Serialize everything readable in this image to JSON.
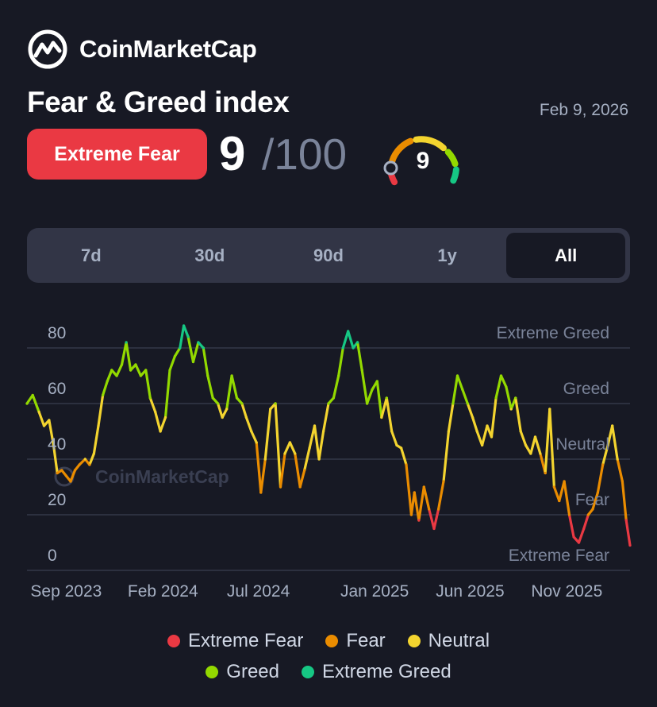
{
  "header": {
    "brand": "CoinMarketCap",
    "title": "Fear & Greed index",
    "date": "Feb 9, 2026"
  },
  "summary": {
    "classification": "Extreme Fear",
    "value": "9",
    "out_of": "/100",
    "gauge_value": "9"
  },
  "tabs": [
    {
      "label": "7d",
      "active": false
    },
    {
      "label": "30d",
      "active": false
    },
    {
      "label": "90d",
      "active": false
    },
    {
      "label": "1y",
      "active": false
    },
    {
      "label": "All",
      "active": true
    }
  ],
  "colors": {
    "extreme_fear": "#ea3943",
    "fear": "#ea8c00",
    "neutral": "#f3d42f",
    "greed": "#93d900",
    "extreme_greed": "#16c784"
  },
  "chart_data": {
    "type": "line",
    "watermark": "CoinMarketCap",
    "ylim": [
      0,
      100
    ],
    "y_ticks": [
      "80",
      "60",
      "40",
      "20",
      "0"
    ],
    "zone_labels": [
      "Extreme Greed",
      "Greed",
      "Neutral",
      "Fear",
      "Extreme Fear"
    ],
    "x_ticks": [
      "Sep 2023",
      "Feb 2024",
      "Jul 2024",
      "Jan 2025",
      "Jun 2025",
      "Nov 2025"
    ],
    "grid": true,
    "legend": {
      "position": "bottom",
      "items": [
        {
          "label": "Extreme Fear",
          "color": "#ea3943"
        },
        {
          "label": "Fear",
          "color": "#ea8c00"
        },
        {
          "label": "Neutral",
          "color": "#f3d42f"
        },
        {
          "label": "Greed",
          "color": "#93d900"
        },
        {
          "label": "Extreme Greed",
          "color": "#16c784"
        }
      ]
    },
    "x_start": "2023-07-01",
    "x_end": "2026-02-09",
    "series": [
      {
        "points": [
          [
            "2023-07-01",
            60
          ],
          [
            "2023-07-10",
            63
          ],
          [
            "2023-07-20",
            57
          ],
          [
            "2023-07-28",
            52
          ],
          [
            "2023-08-05",
            54
          ],
          [
            "2023-08-12",
            45
          ],
          [
            "2023-08-18",
            35
          ],
          [
            "2023-08-25",
            36
          ],
          [
            "2023-09-01",
            34
          ],
          [
            "2023-09-08",
            32
          ],
          [
            "2023-09-15",
            36
          ],
          [
            "2023-09-22",
            38
          ],
          [
            "2023-10-01",
            40
          ],
          [
            "2023-10-08",
            38
          ],
          [
            "2023-10-15",
            42
          ],
          [
            "2023-10-22",
            52
          ],
          [
            "2023-10-29",
            63
          ],
          [
            "2023-11-05",
            68
          ],
          [
            "2023-11-12",
            72
          ],
          [
            "2023-11-20",
            70
          ],
          [
            "2023-11-28",
            74
          ],
          [
            "2023-12-05",
            82
          ],
          [
            "2023-12-12",
            72
          ],
          [
            "2023-12-20",
            74
          ],
          [
            "2023-12-28",
            70
          ],
          [
            "2024-01-05",
            72
          ],
          [
            "2024-01-12",
            62
          ],
          [
            "2024-01-20",
            57
          ],
          [
            "2024-01-28",
            50
          ],
          [
            "2024-02-05",
            55
          ],
          [
            "2024-02-12",
            72
          ],
          [
            "2024-02-20",
            77
          ],
          [
            "2024-02-28",
            80
          ],
          [
            "2024-03-05",
            88
          ],
          [
            "2024-03-12",
            84
          ],
          [
            "2024-03-20",
            75
          ],
          [
            "2024-03-28",
            82
          ],
          [
            "2024-04-05",
            80
          ],
          [
            "2024-04-12",
            70
          ],
          [
            "2024-04-20",
            62
          ],
          [
            "2024-04-28",
            60
          ],
          [
            "2024-05-05",
            55
          ],
          [
            "2024-05-12",
            58
          ],
          [
            "2024-05-20",
            70
          ],
          [
            "2024-05-28",
            62
          ],
          [
            "2024-06-05",
            60
          ],
          [
            "2024-06-12",
            55
          ],
          [
            "2024-06-20",
            50
          ],
          [
            "2024-06-28",
            46
          ],
          [
            "2024-07-05",
            28
          ],
          [
            "2024-07-12",
            40
          ],
          [
            "2024-07-20",
            58
          ],
          [
            "2024-07-28",
            60
          ],
          [
            "2024-08-05",
            30
          ],
          [
            "2024-08-12",
            42
          ],
          [
            "2024-08-20",
            46
          ],
          [
            "2024-08-28",
            42
          ],
          [
            "2024-09-05",
            30
          ],
          [
            "2024-09-12",
            36
          ],
          [
            "2024-09-20",
            44
          ],
          [
            "2024-09-28",
            52
          ],
          [
            "2024-10-05",
            40
          ],
          [
            "2024-10-12",
            50
          ],
          [
            "2024-10-20",
            60
          ],
          [
            "2024-10-28",
            62
          ],
          [
            "2024-11-05",
            70
          ],
          [
            "2024-11-12",
            80
          ],
          [
            "2024-11-20",
            86
          ],
          [
            "2024-11-28",
            80
          ],
          [
            "2024-12-05",
            82
          ],
          [
            "2024-12-12",
            72
          ],
          [
            "2024-12-20",
            60
          ],
          [
            "2024-12-28",
            65
          ],
          [
            "2025-01-05",
            68
          ],
          [
            "2025-01-12",
            55
          ],
          [
            "2025-01-20",
            62
          ],
          [
            "2025-01-28",
            50
          ],
          [
            "2025-02-05",
            45
          ],
          [
            "2025-02-12",
            44
          ],
          [
            "2025-02-20",
            38
          ],
          [
            "2025-02-28",
            20
          ],
          [
            "2025-03-05",
            28
          ],
          [
            "2025-03-12",
            18
          ],
          [
            "2025-03-20",
            30
          ],
          [
            "2025-03-28",
            22
          ],
          [
            "2025-04-05",
            15
          ],
          [
            "2025-04-12",
            22
          ],
          [
            "2025-04-20",
            32
          ],
          [
            "2025-04-28",
            50
          ],
          [
            "2025-05-05",
            60
          ],
          [
            "2025-05-12",
            70
          ],
          [
            "2025-05-20",
            65
          ],
          [
            "2025-05-28",
            60
          ],
          [
            "2025-06-05",
            55
          ],
          [
            "2025-06-12",
            50
          ],
          [
            "2025-06-20",
            45
          ],
          [
            "2025-06-28",
            52
          ],
          [
            "2025-07-05",
            48
          ],
          [
            "2025-07-12",
            62
          ],
          [
            "2025-07-20",
            70
          ],
          [
            "2025-07-28",
            66
          ],
          [
            "2025-08-05",
            58
          ],
          [
            "2025-08-12",
            62
          ],
          [
            "2025-08-20",
            50
          ],
          [
            "2025-08-28",
            45
          ],
          [
            "2025-09-05",
            42
          ],
          [
            "2025-09-12",
            48
          ],
          [
            "2025-09-20",
            42
          ],
          [
            "2025-09-28",
            35
          ],
          [
            "2025-10-05",
            58
          ],
          [
            "2025-10-12",
            30
          ],
          [
            "2025-10-20",
            25
          ],
          [
            "2025-10-28",
            32
          ],
          [
            "2025-11-05",
            20
          ],
          [
            "2025-11-12",
            12
          ],
          [
            "2025-11-20",
            10
          ],
          [
            "2025-11-28",
            15
          ],
          [
            "2025-12-05",
            20
          ],
          [
            "2025-12-12",
            22
          ],
          [
            "2025-12-20",
            28
          ],
          [
            "2025-12-28",
            38
          ],
          [
            "2026-01-05",
            45
          ],
          [
            "2026-01-12",
            52
          ],
          [
            "2026-01-20",
            40
          ],
          [
            "2026-01-28",
            32
          ],
          [
            "2026-02-03",
            18
          ],
          [
            "2026-02-09",
            9
          ]
        ]
      }
    ]
  }
}
